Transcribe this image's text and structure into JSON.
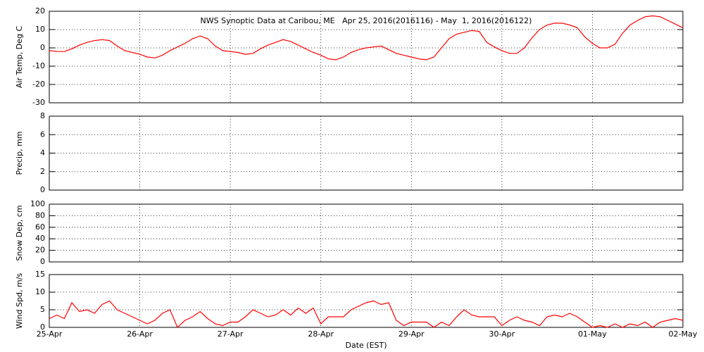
{
  "chart_data": [
    {
      "type": "line",
      "title": "NWS Synoptic Data at Caribou, ME   Apr 25, 2016(2016116) - May  1, 2016(2016122)",
      "ylabel": "Air Temp, Deg C",
      "ylim": [
        -30,
        20
      ],
      "yticks": [
        -30,
        -20,
        -10,
        0,
        10,
        20
      ],
      "grid": true,
      "series": [
        {
          "color": "#ff0000",
          "values": [
            -1.5,
            -2,
            -2,
            -0.5,
            1.5,
            3,
            4,
            4.5,
            4,
            1,
            -1.5,
            -2.5,
            -3.5,
            -5,
            -5.5,
            -4,
            -1.5,
            0.5,
            2.5,
            5,
            6.5,
            5,
            1,
            -1.5,
            -2,
            -2.5,
            -3.5,
            -3,
            -0.5,
            1.5,
            3,
            4.5,
            3.5,
            1.5,
            -0.5,
            -2.5,
            -4,
            -6,
            -6.5,
            -5,
            -2.5,
            -1,
            0,
            0.5,
            1,
            -1,
            -3,
            -4,
            -5,
            -6,
            -6.5,
            -5,
            0,
            5,
            7.5,
            8.5,
            9.5,
            9,
            3,
            0.5,
            -1.5,
            -3,
            -3,
            0,
            5.5,
            10,
            12.5,
            13.5,
            13.5,
            12.5,
            11,
            6,
            2.5,
            0,
            0,
            2,
            8,
            12.5,
            15,
            17,
            17.5,
            17,
            15,
            13,
            11
          ]
        }
      ]
    },
    {
      "type": "line",
      "ylabel": "Precip, mm",
      "ylim": [
        0,
        8
      ],
      "yticks": [
        0,
        2,
        4,
        6,
        8
      ],
      "grid": true,
      "series": []
    },
    {
      "type": "line",
      "ylabel": "Snow Dep, cm",
      "ylim": [
        0,
        100
      ],
      "yticks": [
        0,
        20,
        40,
        60,
        80,
        100
      ],
      "grid": true,
      "series": []
    },
    {
      "type": "line",
      "ylabel": "Wind Spd, m/s",
      "ylim": [
        0,
        15
      ],
      "yticks": [
        0,
        5,
        10,
        15
      ],
      "grid": true,
      "xlabel": "Date (EST)",
      "categories": [
        "25-Apr",
        null,
        null,
        null,
        null,
        null,
        null,
        null,
        null,
        null,
        null,
        null,
        "26-Apr",
        null,
        null,
        null,
        null,
        null,
        null,
        null,
        null,
        null,
        null,
        null,
        "27-Apr",
        null,
        null,
        null,
        null,
        null,
        null,
        null,
        null,
        null,
        null,
        null,
        "28-Apr",
        null,
        null,
        null,
        null,
        null,
        null,
        null,
        null,
        null,
        null,
        null,
        "29-Apr",
        null,
        null,
        null,
        null,
        null,
        null,
        null,
        null,
        null,
        null,
        null,
        "30-Apr",
        null,
        null,
        null,
        null,
        null,
        null,
        null,
        null,
        null,
        null,
        null,
        "01-May",
        null,
        null,
        null,
        null,
        null,
        null,
        null,
        null,
        null,
        null,
        null,
        "02-May"
      ],
      "series": [
        {
          "color": "#ff0000",
          "values": [
            2.5,
            3.5,
            2.5,
            7,
            4.5,
            5,
            4,
            6.5,
            7.5,
            5,
            4,
            3,
            2,
            1,
            2,
            4,
            5,
            0,
            2,
            3,
            4.5,
            2.5,
            1,
            0.5,
            1.5,
            1.5,
            3,
            5,
            4,
            3,
            3.5,
            5,
            3.5,
            5.5,
            4,
            5.5,
            1,
            3,
            3,
            3,
            5,
            6,
            7,
            7.5,
            6.5,
            7,
            2,
            0.5,
            1.5,
            1.5,
            1.5,
            0,
            1.5,
            0.5,
            3,
            5,
            3.5,
            3,
            3,
            3,
            0.5,
            2,
            3,
            2,
            1.5,
            0.5,
            3,
            3.5,
            3,
            4,
            3,
            1.5,
            0,
            0.5,
            0,
            1,
            0,
            1,
            0.5,
            1.5,
            0,
            1.5,
            2,
            2.5,
            2
          ]
        }
      ]
    }
  ]
}
